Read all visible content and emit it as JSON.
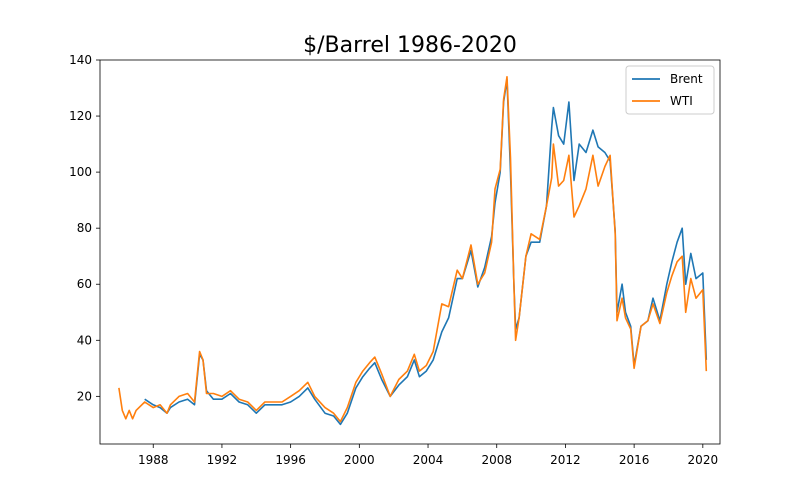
{
  "chart_data": {
    "type": "line",
    "title": "$/Barrel 1986-2020",
    "xlabel": "",
    "ylabel": "",
    "xlim": [
      1984.9,
      2021.0
    ],
    "ylim": [
      3,
      140
    ],
    "x_ticks": [
      1988,
      1992,
      1996,
      2000,
      2004,
      2008,
      2012,
      2016,
      2020
    ],
    "y_ticks": [
      20,
      40,
      60,
      80,
      100,
      120,
      140
    ],
    "grid": false,
    "legend_position": "top-right",
    "series": [
      {
        "name": "Brent",
        "color": "#1f77b4",
        "points": [
          [
            1987.5,
            19
          ],
          [
            1988.0,
            17
          ],
          [
            1988.4,
            16
          ],
          [
            1988.8,
            14
          ],
          [
            1989.0,
            16
          ],
          [
            1989.5,
            18
          ],
          [
            1990.0,
            19
          ],
          [
            1990.4,
            17
          ],
          [
            1990.7,
            35
          ],
          [
            1990.9,
            33
          ],
          [
            1991.1,
            22
          ],
          [
            1991.5,
            19
          ],
          [
            1992.0,
            19
          ],
          [
            1992.5,
            21
          ],
          [
            1993.0,
            18
          ],
          [
            1993.5,
            17
          ],
          [
            1994.0,
            14
          ],
          [
            1994.5,
            17
          ],
          [
            1995.0,
            17
          ],
          [
            1995.5,
            17
          ],
          [
            1996.0,
            18
          ],
          [
            1996.5,
            20
          ],
          [
            1997.0,
            23
          ],
          [
            1997.4,
            19
          ],
          [
            1998.0,
            14
          ],
          [
            1998.5,
            13
          ],
          [
            1998.9,
            10
          ],
          [
            1999.3,
            14
          ],
          [
            1999.8,
            23
          ],
          [
            2000.2,
            27
          ],
          [
            2000.6,
            30
          ],
          [
            2000.9,
            32
          ],
          [
            2001.3,
            26
          ],
          [
            2001.8,
            20
          ],
          [
            2002.3,
            24
          ],
          [
            2002.8,
            27
          ],
          [
            2003.2,
            33
          ],
          [
            2003.5,
            27
          ],
          [
            2003.9,
            29
          ],
          [
            2004.3,
            33
          ],
          [
            2004.8,
            43
          ],
          [
            2005.2,
            48
          ],
          [
            2005.7,
            62
          ],
          [
            2006.0,
            62
          ],
          [
            2006.5,
            72
          ],
          [
            2006.9,
            59
          ],
          [
            2007.3,
            66
          ],
          [
            2007.7,
            77
          ],
          [
            2007.9,
            89
          ],
          [
            2008.2,
            100
          ],
          [
            2008.4,
            125
          ],
          [
            2008.6,
            133
          ],
          [
            2008.8,
            100
          ],
          [
            2009.0,
            60
          ],
          [
            2009.1,
            44
          ],
          [
            2009.3,
            48
          ],
          [
            2009.7,
            70
          ],
          [
            2010.0,
            75
          ],
          [
            2010.5,
            75
          ],
          [
            2010.9,
            88
          ],
          [
            2011.2,
            116
          ],
          [
            2011.3,
            123
          ],
          [
            2011.6,
            113
          ],
          [
            2011.9,
            110
          ],
          [
            2012.2,
            125
          ],
          [
            2012.5,
            97
          ],
          [
            2012.8,
            110
          ],
          [
            2013.2,
            107
          ],
          [
            2013.6,
            115
          ],
          [
            2013.9,
            109
          ],
          [
            2014.3,
            107
          ],
          [
            2014.6,
            104
          ],
          [
            2014.9,
            79
          ],
          [
            2015.0,
            50
          ],
          [
            2015.3,
            60
          ],
          [
            2015.5,
            50
          ],
          [
            2015.8,
            45
          ],
          [
            2016.0,
            31
          ],
          [
            2016.4,
            45
          ],
          [
            2016.8,
            47
          ],
          [
            2017.1,
            55
          ],
          [
            2017.5,
            47
          ],
          [
            2017.9,
            60
          ],
          [
            2018.2,
            68
          ],
          [
            2018.5,
            75
          ],
          [
            2018.8,
            80
          ],
          [
            2019.0,
            60
          ],
          [
            2019.3,
            71
          ],
          [
            2019.6,
            62
          ],
          [
            2020.0,
            64
          ],
          [
            2020.2,
            33
          ]
        ]
      },
      {
        "name": "WTI",
        "color": "#ff7f0e",
        "points": [
          [
            1986.0,
            23
          ],
          [
            1986.2,
            15
          ],
          [
            1986.4,
            12
          ],
          [
            1986.6,
            15
          ],
          [
            1986.8,
            12
          ],
          [
            1987.0,
            15
          ],
          [
            1987.5,
            18
          ],
          [
            1988.0,
            16
          ],
          [
            1988.4,
            17
          ],
          [
            1988.8,
            14
          ],
          [
            1989.0,
            17
          ],
          [
            1989.5,
            20
          ],
          [
            1990.0,
            21
          ],
          [
            1990.4,
            18
          ],
          [
            1990.7,
            36
          ],
          [
            1990.9,
            33
          ],
          [
            1991.1,
            21
          ],
          [
            1991.5,
            21
          ],
          [
            1992.0,
            20
          ],
          [
            1992.5,
            22
          ],
          [
            1993.0,
            19
          ],
          [
            1993.5,
            18
          ],
          [
            1994.0,
            15
          ],
          [
            1994.5,
            18
          ],
          [
            1995.0,
            18
          ],
          [
            1995.5,
            18
          ],
          [
            1996.0,
            20
          ],
          [
            1996.5,
            22
          ],
          [
            1997.0,
            25
          ],
          [
            1997.4,
            20
          ],
          [
            1998.0,
            16
          ],
          [
            1998.5,
            14
          ],
          [
            1998.9,
            11
          ],
          [
            1999.3,
            16
          ],
          [
            1999.8,
            25
          ],
          [
            2000.2,
            29
          ],
          [
            2000.6,
            32
          ],
          [
            2000.9,
            34
          ],
          [
            2001.3,
            28
          ],
          [
            2001.8,
            20
          ],
          [
            2002.3,
            26
          ],
          [
            2002.8,
            29
          ],
          [
            2003.2,
            35
          ],
          [
            2003.5,
            29
          ],
          [
            2003.9,
            31
          ],
          [
            2004.3,
            36
          ],
          [
            2004.8,
            53
          ],
          [
            2005.2,
            52
          ],
          [
            2005.7,
            65
          ],
          [
            2006.0,
            62
          ],
          [
            2006.5,
            74
          ],
          [
            2006.9,
            60
          ],
          [
            2007.3,
            64
          ],
          [
            2007.7,
            75
          ],
          [
            2007.9,
            94
          ],
          [
            2008.2,
            101
          ],
          [
            2008.4,
            126
          ],
          [
            2008.6,
            134
          ],
          [
            2008.8,
            105
          ],
          [
            2009.0,
            60
          ],
          [
            2009.1,
            40
          ],
          [
            2009.3,
            48
          ],
          [
            2009.7,
            70
          ],
          [
            2010.0,
            78
          ],
          [
            2010.5,
            76
          ],
          [
            2010.9,
            88
          ],
          [
            2011.2,
            98
          ],
          [
            2011.3,
            110
          ],
          [
            2011.6,
            95
          ],
          [
            2011.9,
            97
          ],
          [
            2012.2,
            106
          ],
          [
            2012.5,
            84
          ],
          [
            2012.8,
            88
          ],
          [
            2013.2,
            94
          ],
          [
            2013.6,
            106
          ],
          [
            2013.9,
            95
          ],
          [
            2014.3,
            102
          ],
          [
            2014.6,
            106
          ],
          [
            2014.9,
            78
          ],
          [
            2015.0,
            47
          ],
          [
            2015.3,
            55
          ],
          [
            2015.5,
            48
          ],
          [
            2015.8,
            44
          ],
          [
            2016.0,
            30
          ],
          [
            2016.4,
            45
          ],
          [
            2016.8,
            47
          ],
          [
            2017.1,
            53
          ],
          [
            2017.5,
            46
          ],
          [
            2017.9,
            57
          ],
          [
            2018.2,
            63
          ],
          [
            2018.5,
            68
          ],
          [
            2018.8,
            70
          ],
          [
            2019.0,
            50
          ],
          [
            2019.3,
            62
          ],
          [
            2019.6,
            55
          ],
          [
            2020.0,
            58
          ],
          [
            2020.2,
            29
          ]
        ]
      }
    ]
  }
}
